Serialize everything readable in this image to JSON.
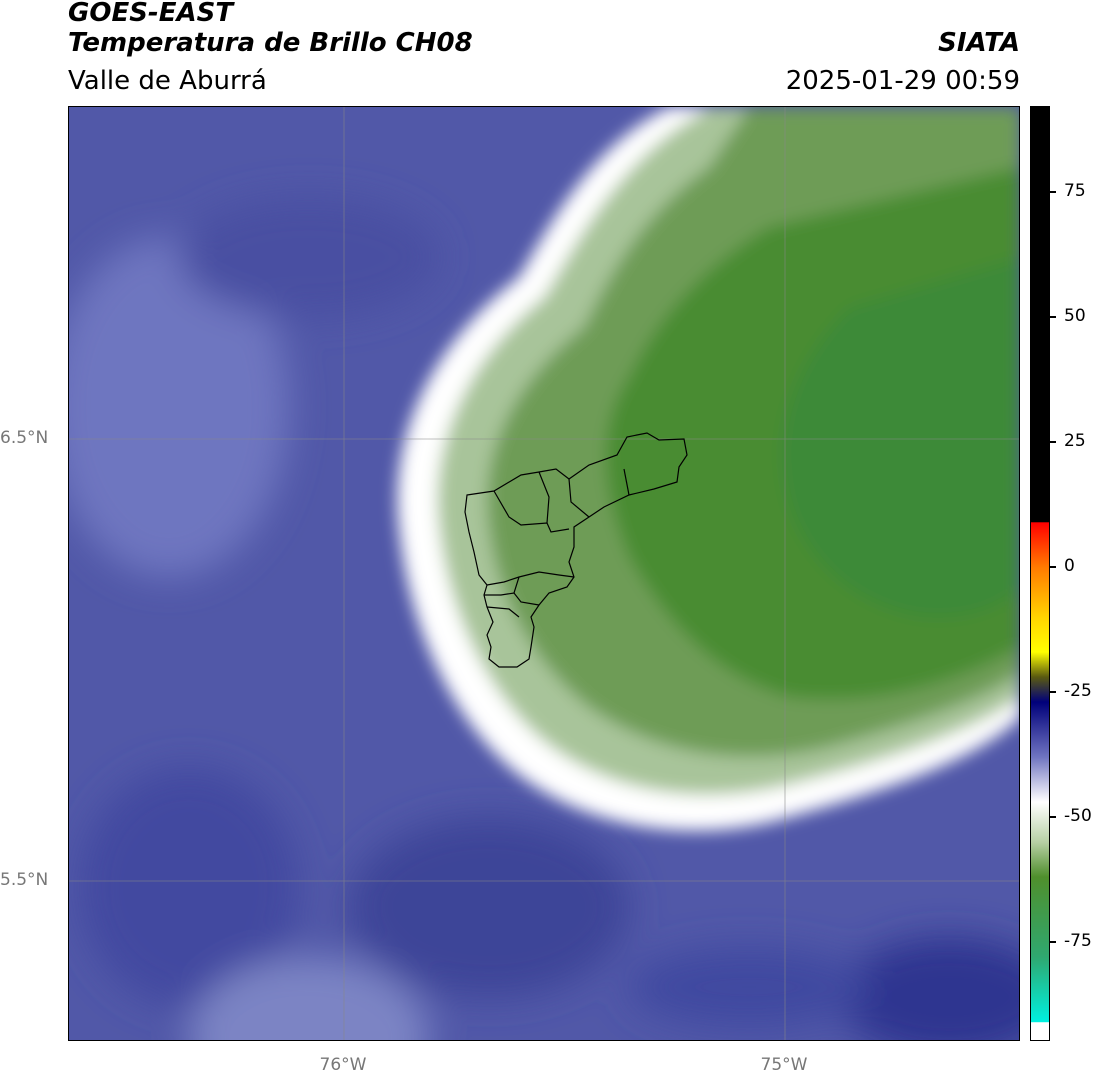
{
  "header": {
    "satellite": "GOES-EAST",
    "product": "Temperatura de Brillo CH08",
    "region": "Valle de Aburrá",
    "organization": "SIATA",
    "datetime": "2025-01-29 00:59"
  },
  "map": {
    "lat_labels": [
      "6.5°N",
      "5.5°N"
    ],
    "lon_labels": [
      "76°W",
      "75°W"
    ],
    "colors": {
      "background_dark": "#3d4498",
      "background_mid": "#5a62b0",
      "background_light": "#7a82c4",
      "cloud_edge_white": "#ffffff",
      "cloud_pale_green": "#a8c49a",
      "cloud_green": "#5e9447",
      "cloud_core_green": "#3c8a2c",
      "boundary_line": "#000000",
      "grid_line": "#888888"
    }
  },
  "colorbar": {
    "ticks": [
      "75",
      "50",
      "25",
      "0",
      "-25",
      "-50",
      "-75"
    ],
    "tick_values": [
      75,
      50,
      25,
      0,
      -25,
      -50,
      -75
    ],
    "range": [
      -95,
      92
    ],
    "stops": [
      {
        "value": 92,
        "color": "#000000"
      },
      {
        "value": 9,
        "color": "#000000"
      },
      {
        "value": 8.9,
        "color": "#ff0000"
      },
      {
        "value": 0,
        "color": "#ff7a00"
      },
      {
        "value": -10,
        "color": "#ffd400"
      },
      {
        "value": -17,
        "color": "#ffff00"
      },
      {
        "value": -22,
        "color": "#5a5a10"
      },
      {
        "value": -27,
        "color": "#00007a"
      },
      {
        "value": -38,
        "color": "#6f74c0"
      },
      {
        "value": -47,
        "color": "#ffffff"
      },
      {
        "value": -55,
        "color": "#b7d0a5"
      },
      {
        "value": -62,
        "color": "#4f8f2c"
      },
      {
        "value": -78,
        "color": "#2fa870"
      },
      {
        "value": -91,
        "color": "#00f0e0"
      },
      {
        "value": -91.1,
        "color": "#ffffff"
      },
      {
        "value": -95,
        "color": "#ffffff"
      }
    ]
  }
}
